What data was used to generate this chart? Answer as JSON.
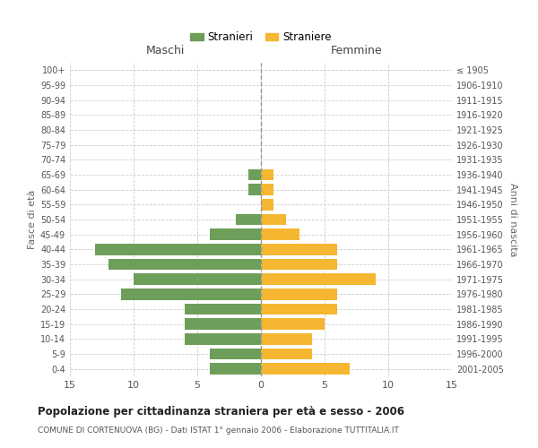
{
  "age_groups": [
    "100+",
    "95-99",
    "90-94",
    "85-89",
    "80-84",
    "75-79",
    "70-74",
    "65-69",
    "60-64",
    "55-59",
    "50-54",
    "45-49",
    "40-44",
    "35-39",
    "30-34",
    "25-29",
    "20-24",
    "15-19",
    "10-14",
    "5-9",
    "0-4"
  ],
  "birth_years": [
    "≤ 1905",
    "1906-1910",
    "1911-1915",
    "1916-1920",
    "1921-1925",
    "1926-1930",
    "1931-1935",
    "1936-1940",
    "1941-1945",
    "1946-1950",
    "1951-1955",
    "1956-1960",
    "1961-1965",
    "1966-1970",
    "1971-1975",
    "1976-1980",
    "1981-1985",
    "1986-1990",
    "1991-1995",
    "1996-2000",
    "2001-2005"
  ],
  "males": [
    0,
    0,
    0,
    0,
    0,
    0,
    0,
    1,
    1,
    0,
    2,
    4,
    13,
    12,
    10,
    11,
    6,
    6,
    6,
    4,
    4
  ],
  "females": [
    0,
    0,
    0,
    0,
    0,
    0,
    0,
    1,
    1,
    1,
    2,
    3,
    6,
    6,
    9,
    6,
    6,
    5,
    4,
    4,
    7
  ],
  "male_color": "#6d9e5a",
  "female_color": "#f5b731",
  "background_color": "#ffffff",
  "grid_color": "#cccccc",
  "axis_label_left": "Fasce di età",
  "axis_label_right": "Anni di nascita",
  "xlabel_left": "Maschi",
  "xlabel_right": "Femmine",
  "legend_male": "Stranieri",
  "legend_female": "Straniere",
  "title": "Popolazione per cittadinanza straniera per età e sesso - 2006",
  "subtitle": "COMUNE DI CORTENUOVA (BG) - Dati ISTAT 1° gennaio 2006 - Elaborazione TUTTITALIA.IT",
  "xlim": 15
}
